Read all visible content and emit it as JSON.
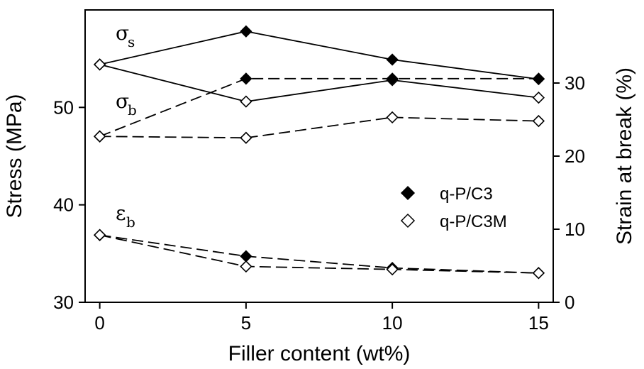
{
  "chart_data": {
    "type": "line",
    "xlabel": "Filler content  (wt%)",
    "ylabel": "Stress (MPa)",
    "y2label": "Strain  at  break (%)",
    "x_ticks": [
      0,
      5,
      10,
      15
    ],
    "y_ticks": [
      30,
      40,
      50
    ],
    "y2_ticks": [
      0,
      10,
      20,
      30
    ],
    "xlim": [
      -0.5,
      15.5
    ],
    "ylim": [
      30,
      60
    ],
    "y2lim": [
      0,
      40
    ],
    "grid": false,
    "legend_position": "right-middle",
    "legend": [
      {
        "label": "q-P/C3",
        "marker": "filled-diamond"
      },
      {
        "label": "q-P/C3M",
        "marker": "open-diamond"
      }
    ],
    "annotations": [
      {
        "symbol": "σ",
        "sub": "s"
      },
      {
        "symbol": "σ",
        "sub": "b"
      },
      {
        "symbol": "ε",
        "sub": "b"
      }
    ],
    "x": [
      0,
      5,
      10,
      15
    ],
    "series": [
      {
        "group": "sigma_s",
        "axis": "left",
        "line": "solid",
        "marker": "filled",
        "values": [
          54.4,
          57.8,
          54.9,
          52.9
        ]
      },
      {
        "group": "sigma_s",
        "axis": "left",
        "line": "solid",
        "marker": "open",
        "values": [
          54.4,
          50.6,
          52.8,
          51.0
        ]
      },
      {
        "group": "sigma_b",
        "axis": "right",
        "line": "dashed",
        "marker": "filled",
        "values": [
          22.7,
          30.6,
          30.6,
          30.6
        ]
      },
      {
        "group": "sigma_b",
        "axis": "right",
        "line": "dashed",
        "marker": "open",
        "values": [
          22.7,
          22.5,
          25.3,
          24.8
        ]
      },
      {
        "group": "epsilon_b",
        "axis": "right",
        "line": "dashed",
        "marker": "filled",
        "values": [
          9.2,
          6.3,
          4.7,
          4.0
        ]
      },
      {
        "group": "epsilon_b",
        "axis": "right",
        "line": "dashed",
        "marker": "open",
        "values": [
          9.2,
          4.9,
          4.5,
          4.0
        ]
      }
    ]
  }
}
